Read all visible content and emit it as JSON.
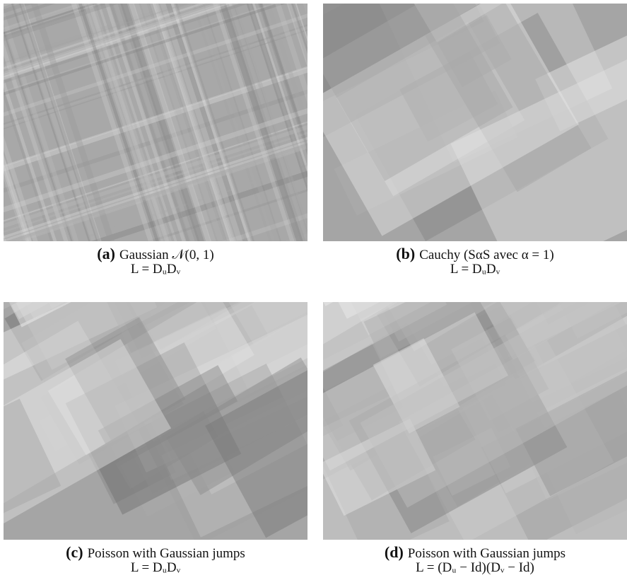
{
  "panels": [
    {
      "label": "(a)",
      "caption": "Gaussian 𝒩(0, 1)",
      "formula": "L = DᵤDᵥ"
    },
    {
      "label": "(b)",
      "caption": "Cauchy (SαS avec α = 1)",
      "formula": "L = DᵤDᵥ"
    },
    {
      "label": "(c)",
      "caption": "Poisson with Gaussian jumps",
      "formula": "L = DᵤDᵥ"
    },
    {
      "label": "(d)",
      "caption": "Poisson with Gaussian jumps",
      "formula": "L = (Dᵤ − Id)(Dᵥ − Id)"
    }
  ]
}
